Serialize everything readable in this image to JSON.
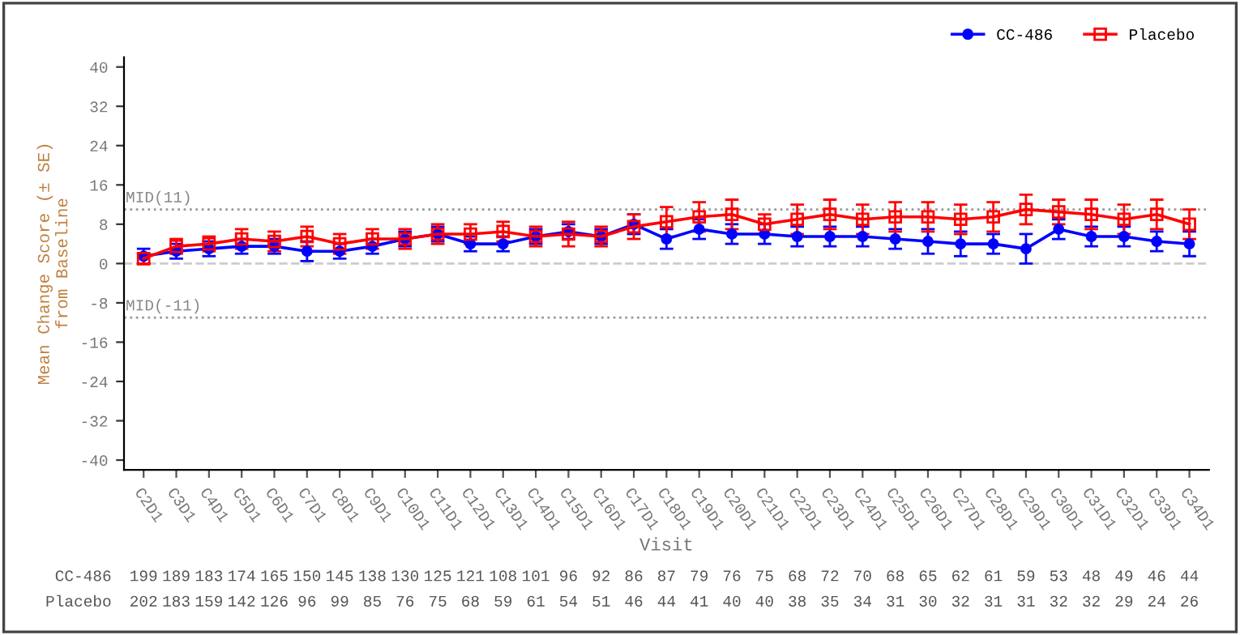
{
  "chart_data": {
    "type": "line",
    "xlabel": "Visit",
    "ylabel": "Mean Change Score (± SE)\nfrom Baseline",
    "categories": [
      "C2D1",
      "C3D1",
      "C4D1",
      "C5D1",
      "C6D1",
      "C7D1",
      "C8D1",
      "C9D1",
      "C10D1",
      "C11D1",
      "C12D1",
      "C13D1",
      "C14D1",
      "C15D1",
      "C16D1",
      "C17D1",
      "C18D1",
      "C19D1",
      "C20D1",
      "C21D1",
      "C22D1",
      "C23D1",
      "C24D1",
      "C25D1",
      "C26D1",
      "C27D1",
      "C28D1",
      "C29D1",
      "C30D1",
      "C31D1",
      "C32D1",
      "C33D1",
      "C34D1"
    ],
    "series": [
      {
        "name": "CC-486",
        "color": "#0000ff",
        "marker": "circle",
        "values": [
          1.5,
          2.5,
          3,
          3.5,
          3.5,
          2.5,
          2.5,
          3.5,
          5,
          6,
          4,
          4,
          5.5,
          6.5,
          5.5,
          8,
          5,
          7,
          6,
          6,
          5.5,
          5.5,
          5.5,
          5,
          4.5,
          4,
          4,
          3,
          7,
          5.5,
          5.5,
          4.5,
          4
        ],
        "errors": [
          1.5,
          1.5,
          1.5,
          1.5,
          1.5,
          2,
          1.5,
          1.5,
          1.5,
          1.5,
          1.5,
          1.5,
          1.5,
          1.5,
          1.5,
          2,
          2,
          2,
          2,
          2,
          2,
          2,
          2,
          2,
          2.5,
          2.5,
          2,
          3,
          2,
          2,
          2,
          2,
          2.5
        ]
      },
      {
        "name": "Placebo",
        "color": "#ff0000",
        "marker": "square",
        "values": [
          1,
          3.5,
          4,
          5,
          4.5,
          5.5,
          4,
          5,
          5,
          6,
          6,
          6.5,
          5.5,
          6,
          5.5,
          7.5,
          8.5,
          9.5,
          10,
          8,
          9,
          10,
          9,
          9.5,
          9.5,
          9,
          9.5,
          11,
          10.5,
          10,
          9,
          10,
          8
        ],
        "errors": [
          1,
          1.5,
          1.5,
          2,
          2,
          2,
          2,
          2,
          2,
          2,
          2,
          2,
          2,
          2.5,
          2,
          2.5,
          3,
          3,
          3,
          2,
          3,
          3,
          3,
          3,
          3,
          3,
          3,
          3,
          2.5,
          3,
          3,
          3,
          3
        ]
      }
    ],
    "ylim": [
      -42,
      42
    ],
    "yticks": [
      -40,
      -32,
      -24,
      -16,
      -8,
      0,
      8,
      16,
      24,
      32,
      40
    ],
    "ref_lines": [
      {
        "axis": "y",
        "value": 11,
        "label": "MID(11)",
        "color": "#999999",
        "line_style": "dotted"
      },
      {
        "axis": "y",
        "value": -11,
        "label": "MID(-11)",
        "color": "#999999",
        "line_style": "dotted"
      },
      {
        "axis": "y",
        "value": 0,
        "color": "#cccccc",
        "line_style": "dashed"
      }
    ],
    "legend": "top right",
    "grid": false,
    "annotations": [
      "CC-486",
      "199",
      "189",
      "183",
      "174",
      "165",
      "150",
      "145",
      "138",
      "130",
      "125",
      "121",
      "108",
      "101",
      "96",
      "92",
      "86",
      "87",
      "79",
      "76",
      "75",
      "68",
      "72",
      "70",
      "68",
      "65",
      "62",
      "61",
      "59",
      "53",
      "48",
      "49",
      "46",
      "44",
      "Placebo",
      "202",
      "183",
      "159",
      "142",
      "126",
      "96",
      "99",
      "85",
      "76",
      "75",
      "68",
      "59",
      "61",
      "54",
      "51",
      "46",
      "44",
      "41",
      "40",
      "40",
      "38",
      "35",
      "34",
      "31",
      "30",
      "32",
      "31",
      "31",
      "32",
      "32",
      "29",
      "24",
      "26"
    ]
  }
}
